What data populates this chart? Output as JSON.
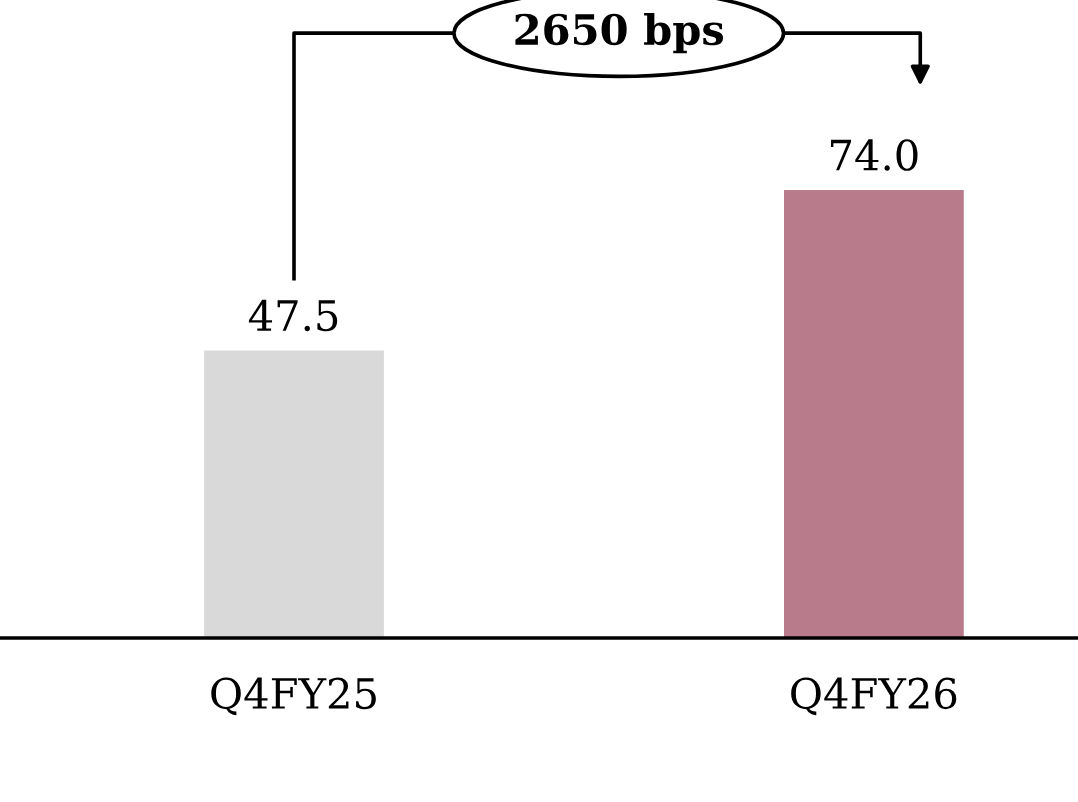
{
  "chart_data": {
    "type": "bar",
    "categories": [
      "Q4FY25",
      "Q4FY26"
    ],
    "values": [
      47.5,
      74.0
    ],
    "colors": [
      "#d9d9d9",
      "#b77b8c"
    ],
    "value_labels": [
      "47.5",
      "74.0"
    ],
    "annotations": [
      "2650 bps"
    ],
    "grid": false,
    "legend": false
  }
}
